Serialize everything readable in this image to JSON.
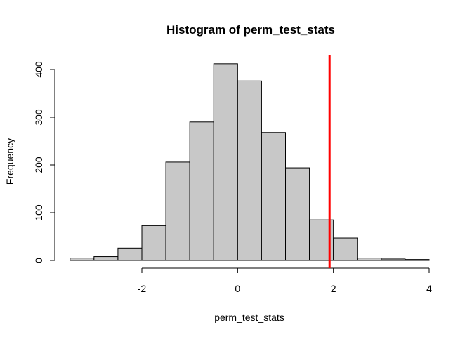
{
  "chart_data": {
    "type": "bar",
    "title": "Histogram of perm_test_stats",
    "xlabel": "perm_test_stats",
    "ylabel": "Frequency",
    "bin_width": 0.5,
    "bins": [
      {
        "start": -3.5,
        "end": -3.0,
        "count": 5
      },
      {
        "start": -3.0,
        "end": -2.5,
        "count": 8
      },
      {
        "start": -2.5,
        "end": -2.0,
        "count": 26
      },
      {
        "start": -2.0,
        "end": -1.5,
        "count": 73
      },
      {
        "start": -1.5,
        "end": -1.0,
        "count": 206
      },
      {
        "start": -1.0,
        "end": -0.5,
        "count": 290
      },
      {
        "start": -0.5,
        "end": 0.0,
        "count": 412
      },
      {
        "start": 0.0,
        "end": 0.5,
        "count": 376
      },
      {
        "start": 0.5,
        "end": 1.0,
        "count": 268
      },
      {
        "start": 1.0,
        "end": 1.5,
        "count": 194
      },
      {
        "start": 1.5,
        "end": 2.0,
        "count": 85
      },
      {
        "start": 2.0,
        "end": 2.5,
        "count": 47
      },
      {
        "start": 2.5,
        "end": 3.0,
        "count": 5
      },
      {
        "start": 3.0,
        "end": 3.5,
        "count": 3
      },
      {
        "start": 3.5,
        "end": 4.0,
        "count": 2
      }
    ],
    "xlim": [
      -3.5,
      4
    ],
    "ylim": [
      0,
      430
    ],
    "x_ticks": [
      -2,
      0,
      2,
      4
    ],
    "x_tick_labels": [
      "-2",
      "0",
      "2",
      "4"
    ],
    "y_ticks": [
      0,
      100,
      200,
      300,
      400
    ],
    "y_tick_labels": [
      "0",
      "100",
      "200",
      "300",
      "400"
    ],
    "reference_line": {
      "x": 1.92,
      "color": "#ff0000"
    },
    "bar_fill": "#c8c8c8",
    "grid": false,
    "legend": "none"
  }
}
